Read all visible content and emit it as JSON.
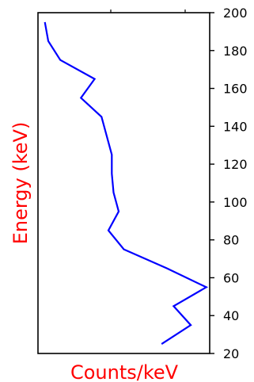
{
  "chart_data": {
    "type": "line",
    "orientation": "vertical-profile",
    "xlabel": "Counts/keV",
    "ylabel": "Energy (keV)",
    "ylim": [
      20,
      200
    ],
    "yticks": [
      20,
      40,
      60,
      80,
      100,
      120,
      140,
      160,
      180,
      200
    ],
    "ytick_labels": [
      "20",
      "40",
      "60",
      "80",
      "100",
      "120",
      "140",
      "160",
      "180",
      "200"
    ],
    "y_axis_side": "right",
    "x_tick_labels": "none",
    "grid": false,
    "label_color": "#ff0000",
    "series": [
      {
        "color": "#0000ff",
        "energy": [
          25,
          35,
          45,
          55,
          65,
          75,
          85,
          95,
          105,
          115,
          125,
          135,
          145,
          155,
          165,
          175,
          185,
          195
        ],
        "counts": [
          0.72,
          0.89,
          0.79,
          0.98,
          0.75,
          0.5,
          0.41,
          0.47,
          0.44,
          0.43,
          0.43,
          0.4,
          0.37,
          0.25,
          0.33,
          0.13,
          0.06,
          0.04
        ]
      }
    ],
    "xlim": [
      0,
      1
    ]
  }
}
